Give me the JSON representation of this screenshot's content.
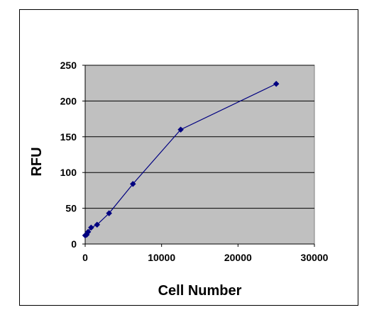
{
  "chart_data": {
    "type": "line",
    "title": "",
    "xlabel": "Cell Number",
    "ylabel": "RFU",
    "xlim": [
      0,
      30000
    ],
    "ylim": [
      0,
      250
    ],
    "xticks": [
      0,
      10000,
      20000,
      30000
    ],
    "yticks": [
      0,
      50,
      100,
      150,
      200,
      250
    ],
    "xtick_labels": [
      "0",
      "10000",
      "20000",
      "30000"
    ],
    "ytick_labels": [
      "0",
      "50",
      "100",
      "150",
      "200",
      "250"
    ],
    "grid": "horizontal",
    "legend": "none",
    "series": [
      {
        "marker": "diamond",
        "color": "#000080",
        "points": [
          {
            "x": 0,
            "y": 12
          },
          {
            "x": 195,
            "y": 13
          },
          {
            "x": 390,
            "y": 17
          },
          {
            "x": 780,
            "y": 23
          },
          {
            "x": 1560,
            "y": 27
          },
          {
            "x": 3125,
            "y": 43
          },
          {
            "x": 6250,
            "y": 84
          },
          {
            "x": 12500,
            "y": 160
          },
          {
            "x": 25000,
            "y": 224
          }
        ]
      }
    ],
    "colors": {
      "plot_background": "#c0c0c0",
      "gridline": "#000000",
      "series_line": "#000080",
      "marker": "#000080"
    }
  }
}
